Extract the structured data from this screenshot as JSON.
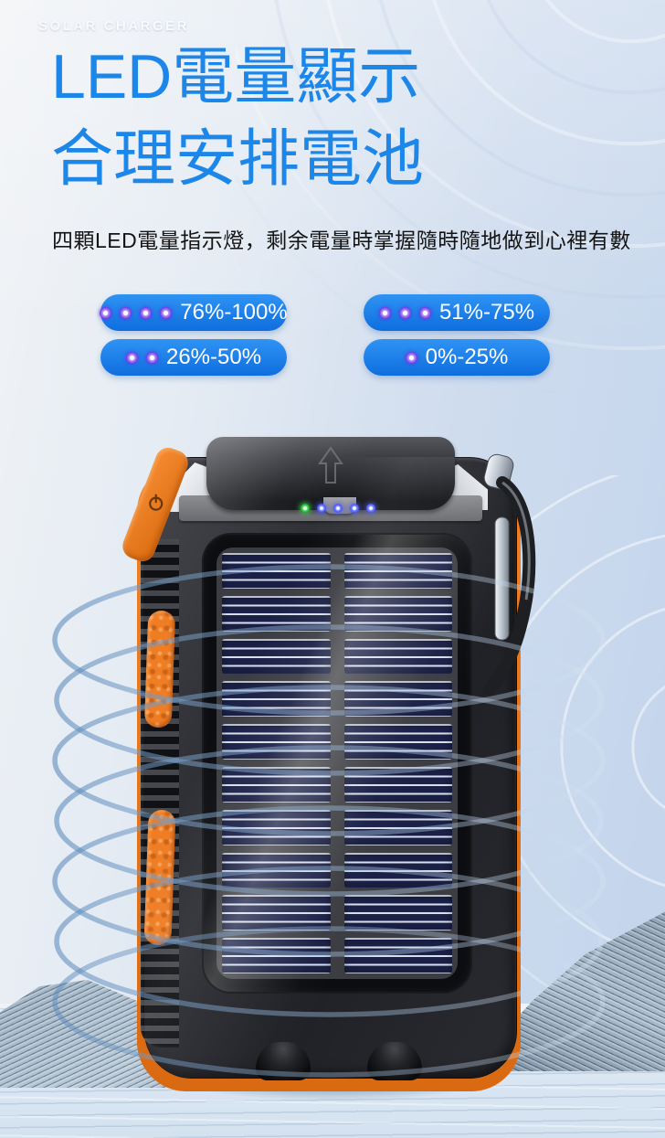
{
  "header": {
    "eyebrow": "SOLAR CHARGER",
    "title_line1": "LED電量顯示",
    "title_line2": "合理安排電池",
    "description": "四顆LED電量指示燈，剩余電量時掌握隨時隨地做到心裡有數"
  },
  "battery": {
    "levels": [
      {
        "label": "76%-100%",
        "dots": 4
      },
      {
        "label": "51%-75%",
        "dots": 3
      },
      {
        "label": "26%-50%",
        "dots": 2
      },
      {
        "label": "0%-25%",
        "dots": 1
      }
    ]
  },
  "product": {
    "indicator_leds": [
      "green",
      "blue",
      "blue",
      "blue",
      "blue"
    ],
    "solar_cells": {
      "columns": 2,
      "rows": 10
    }
  },
  "colors": {
    "headline_blue": "#1d87e9",
    "pill_blue_top": "#2f93f4",
    "pill_blue_bottom": "#0e6ede",
    "led_dot_purple": "#7433e8",
    "accent_orange": "#ef7c23",
    "panel_navy": "#1d2348",
    "ring_blue": "#5c8abc"
  }
}
